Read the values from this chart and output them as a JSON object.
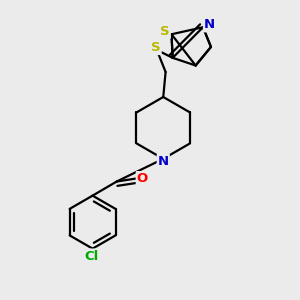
{
  "background_color": "#ebebeb",
  "atom_colors": {
    "S": "#b8b800",
    "N": "#0000cc",
    "O": "#ff0000",
    "Cl": "#00aa00",
    "C": "#000000"
  },
  "line_color": "#000000",
  "line_width": 1.6
}
